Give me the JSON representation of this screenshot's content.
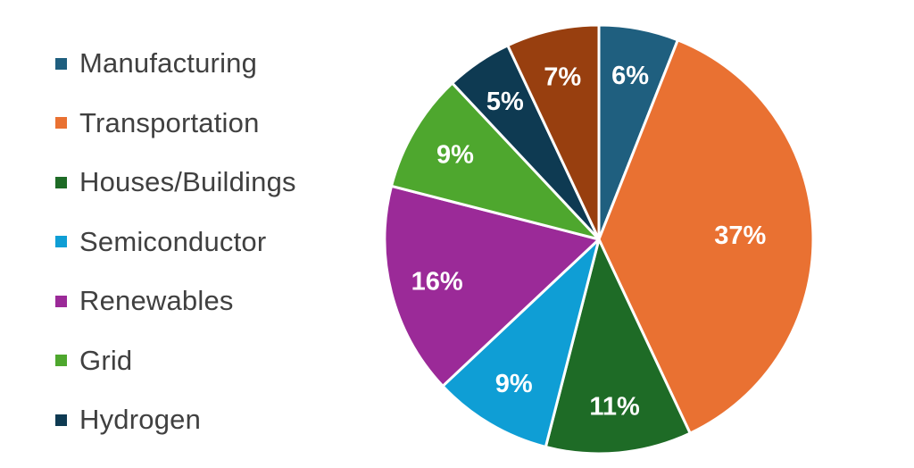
{
  "chart_data": {
    "type": "pie",
    "title": "",
    "legend_position": "left",
    "slices": [
      {
        "label": "Manufacturing",
        "value": 6,
        "display": "6%",
        "color": "#1f5f7f"
      },
      {
        "label": "Transportation",
        "value": 37,
        "display": "37%",
        "color": "#e97132"
      },
      {
        "label": "Houses/Buildings",
        "value": 11,
        "display": "11%",
        "color": "#1e6b26"
      },
      {
        "label": "Semiconductor",
        "value": 9,
        "display": "9%",
        "color": "#0f9ed5"
      },
      {
        "label": "Renewables",
        "value": 16,
        "display": "16%",
        "color": "#9b2a98"
      },
      {
        "label": "Grid",
        "value": 9,
        "display": "9%",
        "color": "#4ea72e"
      },
      {
        "label": "Hydrogen",
        "value": 5,
        "display": "5%",
        "color": "#0e3a52"
      },
      {
        "label": "",
        "value": 7,
        "display": "7%",
        "color": "#983f0f"
      }
    ]
  }
}
